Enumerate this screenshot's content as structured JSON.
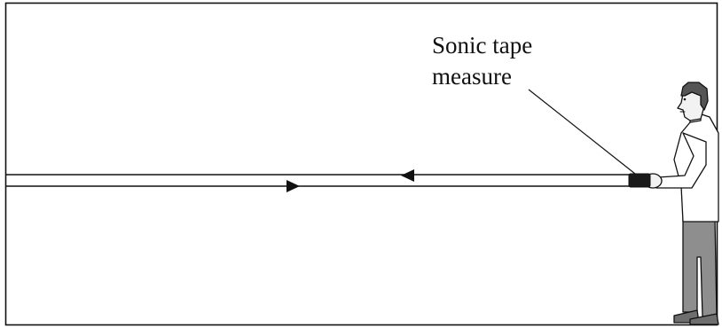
{
  "callout": {
    "line1": "Sonic tape",
    "line2": "measure"
  },
  "colors": {
    "stroke": "#111111",
    "person_skin": "#f2f2f2",
    "person_hair": "#555555",
    "person_shirt": "#ffffff",
    "person_trousers": "#8e8e8e",
    "device": "#1a1a1a"
  },
  "icons": {
    "outgoing_arrow": "arrow-left-icon",
    "return_arrow": "arrow-right-icon"
  }
}
